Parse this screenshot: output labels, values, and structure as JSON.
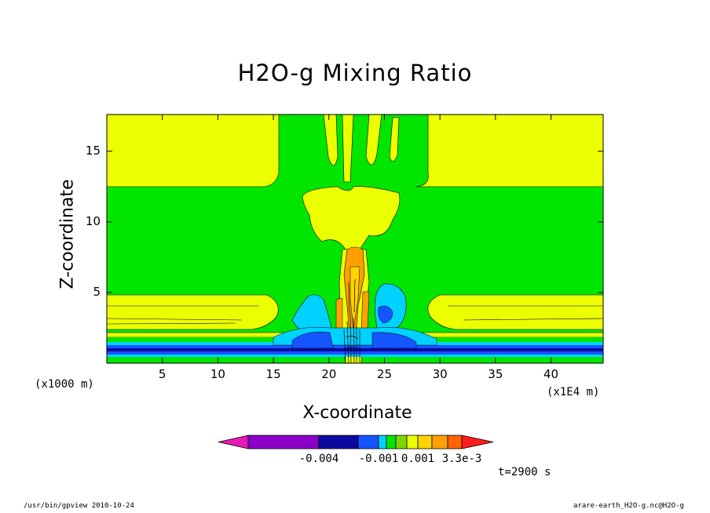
{
  "chart_data": {
    "type": "heatmap",
    "title": "H2O-g Mixing Ratio",
    "xlabel": "X-coordinate",
    "ylabel": "Z-coordinate",
    "x_unit": "(x1E4 m)",
    "y_unit": "(x1000 m)",
    "xlim": [
      0,
      44.7
    ],
    "ylim": [
      0,
      17.6
    ],
    "x_ticks": [
      5,
      10,
      15,
      20,
      25,
      30,
      35,
      40
    ],
    "y_ticks": [
      5,
      10,
      15
    ],
    "colorbar": {
      "colors": [
        "#e619b4",
        "#8a00c8",
        "#0a0aa0",
        "#1455ff",
        "#00d2ff",
        "#00e600",
        "#7ed600",
        "#ecff00",
        "#ffd200",
        "#ffa000",
        "#ff6400",
        "#ff1e1e"
      ],
      "tick_labels": [
        "-0.004",
        "-0.001",
        "0.001",
        "3.3e-3"
      ]
    },
    "time_label": "t=2900 s",
    "colors": {
      "green": "#00e600",
      "yellow": "#ecff00",
      "cyan": "#00d2ff",
      "blue": "#1455ff",
      "navy": "#0a0aa0",
      "orange": "#ffa000",
      "gold": "#ffd200"
    }
  },
  "footer": {
    "left": "/usr/bin/gpview  2010-10-24",
    "right": "arare-earth_H2O-g.nc@H2O-g"
  }
}
